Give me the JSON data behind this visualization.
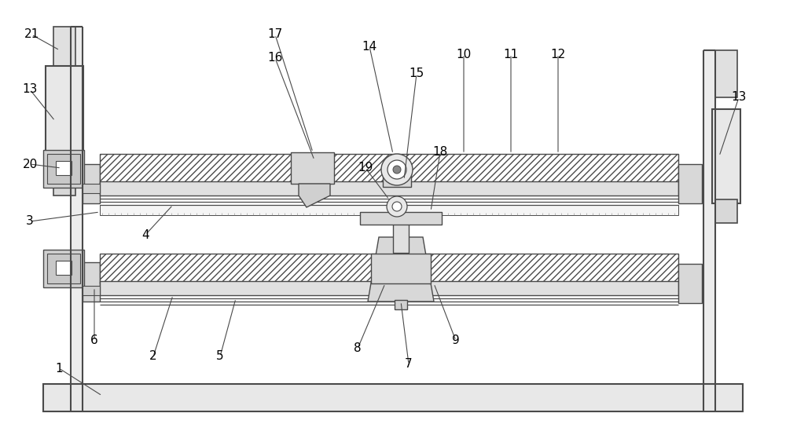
{
  "bg_color": "#ffffff",
  "lc": "#4a4a4a",
  "fig_width": 10.0,
  "fig_height": 5.54,
  "dpi": 100
}
